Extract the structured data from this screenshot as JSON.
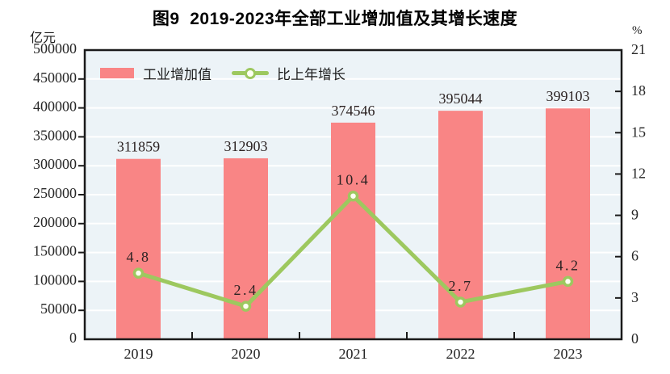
{
  "title": "图9  2019-2023年全部工业增加值及其增长速度",
  "colors": {
    "bar": "#F98585",
    "line": "#9DC85F",
    "marker_fill": "#FDFFF2",
    "plot_bg": "#ECF3F7",
    "grid": "#FFFFFF",
    "axis": "#1A1A1A",
    "text": "#262626"
  },
  "chart_data": {
    "type": "bar+line",
    "title": "图9  2019-2023年全部工业增加值及其增长速度",
    "categories": [
      "2019",
      "2020",
      "2021",
      "2022",
      "2023"
    ],
    "series": [
      {
        "name": "工业增加值",
        "type": "bar",
        "axis": "left",
        "color": "#F98585",
        "values": [
          311859,
          312903,
          374546,
          395044,
          399103
        ],
        "labels": [
          "311859",
          "312903",
          "374546",
          "395044",
          "399103"
        ]
      },
      {
        "name": "比上年增长",
        "type": "line",
        "axis": "right",
        "color": "#9DC85F",
        "marker_fill": "#FDFFF2",
        "values": [
          4.8,
          2.4,
          10.4,
          2.7,
          4.2
        ],
        "labels": [
          "4.8",
          "2.4",
          "10.4",
          "2.7",
          "4.2"
        ]
      }
    ],
    "left_axis": {
      "unit": "亿元",
      "min": 0,
      "max": 500000,
      "step": 50000
    },
    "right_axis": {
      "unit": "%",
      "min": 0,
      "max": 21,
      "step": 3
    },
    "grid": true,
    "legend_position": "top-left-inside"
  }
}
